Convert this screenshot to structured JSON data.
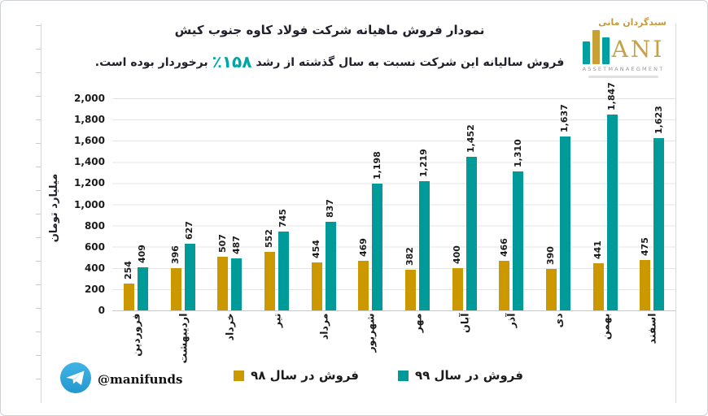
{
  "title": "نمودار فروش ماهیانه شرکت فولاد کاوه جنوب کیش",
  "subtitle": {
    "before": "فروش سالیانه این شرکت نسبت به سال گذشته از رشد",
    "highlight": "٪۱۵۸",
    "after": "برخوردار بوده است."
  },
  "logo": {
    "persian": "سبدگردان مانی",
    "latin": "ANI",
    "subtext": "ASSETMANAEGMENT"
  },
  "watermark": {
    "icon": "telegram-icon",
    "handle": "@manifunds"
  },
  "legend": [
    {
      "label": "فروش در سال ۹۹",
      "color": "#009a98"
    },
    {
      "label": "فروش در سال ۹۸",
      "color": "#cc9800"
    }
  ],
  "colors": {
    "teal_series": "#009a98",
    "gold_series": "#cc9800",
    "accent_teal": "#00a5a6",
    "gridline": "#e4e4e4"
  },
  "chart_data": {
    "type": "bar",
    "title": "نمودار فروش ماهیانه شرکت فولاد کاوه جنوب کیش",
    "ylabel": "میلیارد تومان",
    "ylim": [
      0,
      2000
    ],
    "y_ticks": [
      "0",
      "200",
      "400",
      "600",
      "800",
      "1,000",
      "1,200",
      "1,400",
      "1,600",
      "1,800",
      "2,000"
    ],
    "grid": "horizontal",
    "legend_position": "bottom",
    "value_labels": "rotated-90",
    "categories": [
      "فروردین",
      "اردیبهشت",
      "خرداد",
      "تیر",
      "مرداد",
      "شهریور",
      "مهر",
      "آبان",
      "آذر",
      "دی",
      "بهمن",
      "اسفند"
    ],
    "series": [
      {
        "name": "فروش در سال ۹۸",
        "key": "98",
        "color": "#cc9800",
        "values": [
          254,
          396,
          507,
          552,
          454,
          469,
          382,
          400,
          466,
          390,
          441,
          475
        ]
      },
      {
        "name": "فروش در سال ۹۹",
        "key": "99",
        "color": "#009a98",
        "values": [
          409,
          627,
          487,
          745,
          837,
          1198,
          1219,
          1452,
          1310,
          1637,
          1847,
          1623
        ]
      }
    ]
  }
}
